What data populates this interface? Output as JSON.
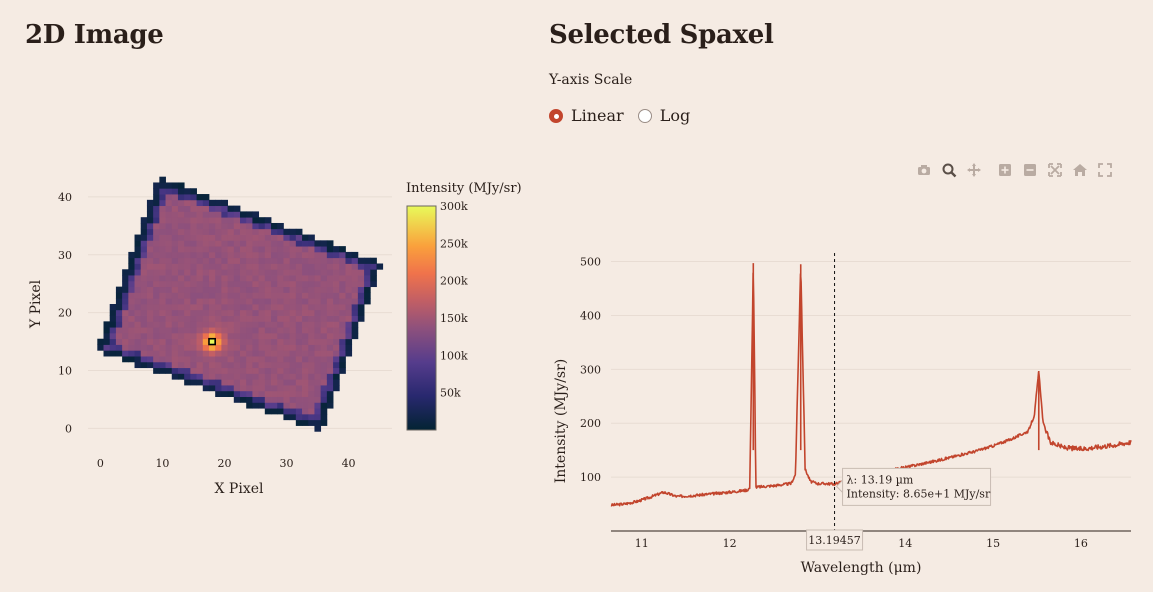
{
  "left_panel": {
    "title": "2D Image"
  },
  "right_panel": {
    "title": "Selected Spaxel",
    "scale_label": "Y-axis Scale",
    "scale_options": [
      "Linear",
      "Log"
    ],
    "scale_selected": "Linear"
  },
  "modebar": [
    "camera-icon",
    "zoom-icon",
    "pan-icon",
    "zoom-in-icon",
    "zoom-out-icon",
    "autoscale-icon",
    "home-icon",
    "fullscreen-icon"
  ],
  "colors": {
    "accent": "#c2452d",
    "background": "#f5ebe3",
    "line": "#c2452d",
    "grid": "#e8dcd3"
  },
  "chart_data": [
    {
      "type": "heatmap",
      "title": "",
      "xlabel": "X Pixel",
      "ylabel": "Y Pixel",
      "xlim": [
        -2,
        47
      ],
      "ylim": [
        -2,
        45
      ],
      "xticks": [
        "0",
        "10",
        "20",
        "30",
        "40"
      ],
      "yticks": [
        "0",
        "10",
        "20",
        "30",
        "40"
      ],
      "colorbar": {
        "title": "Intensity (MJy/sr)",
        "range": [
          0,
          300000
        ],
        "ticks": [
          "300k",
          "250k",
          "200k",
          "150k",
          "100k",
          "50k"
        ],
        "tick_values": [
          300000,
          250000,
          200000,
          150000,
          100000,
          50000
        ]
      },
      "image_corners": [
        [
          10,
          44
        ],
        [
          46,
          29
        ],
        [
          36,
          0
        ],
        [
          0,
          14
        ]
      ],
      "typical_value": 145000,
      "hotspot": {
        "x": 18,
        "y": 15,
        "peak": 300000
      },
      "selected_pixel": {
        "x": 18,
        "y": 15
      }
    },
    {
      "type": "line",
      "title": "",
      "xlabel": "Wavelength (μm)",
      "ylabel": "Intensity (MJy/sr)",
      "xlim": [
        10.65,
        16.57
      ],
      "ylim": [
        0,
        540
      ],
      "xticks": [
        "11",
        "12",
        "13",
        "14",
        "15",
        "16"
      ],
      "yticks": [
        "100",
        "200",
        "300",
        "400",
        "500"
      ],
      "series": [
        {
          "x": [
            10.65,
            10.8,
            10.95,
            11.1,
            11.25,
            11.4,
            11.6,
            11.8,
            12.0,
            12.2,
            12.23,
            12.27,
            12.3,
            12.35,
            12.5,
            12.7,
            12.75,
            12.81,
            12.86,
            12.92,
            13.0,
            13.1,
            13.2,
            13.4,
            13.6,
            13.8,
            14.0,
            14.2,
            14.4,
            14.6,
            14.8,
            15.0,
            15.2,
            15.4,
            15.47,
            15.52,
            15.57,
            15.65,
            15.8,
            16.0,
            16.2,
            16.4,
            16.57
          ],
          "y": [
            48,
            50,
            55,
            63,
            72,
            64,
            66,
            69,
            72,
            76,
            80,
            497,
            81,
            82,
            84,
            88,
            105,
            495,
            115,
            92,
            88,
            88,
            87,
            98,
            105,
            112,
            118,
            125,
            132,
            140,
            148,
            158,
            170,
            185,
            215,
            297,
            200,
            165,
            155,
            152,
            156,
            160,
            165
          ]
        }
      ],
      "hover": {
        "x_value": "13.19457",
        "lines": [
          "λ: 13.19 µm",
          "Intensity: 8.65e+1 MJy/sr"
        ]
      }
    }
  ]
}
